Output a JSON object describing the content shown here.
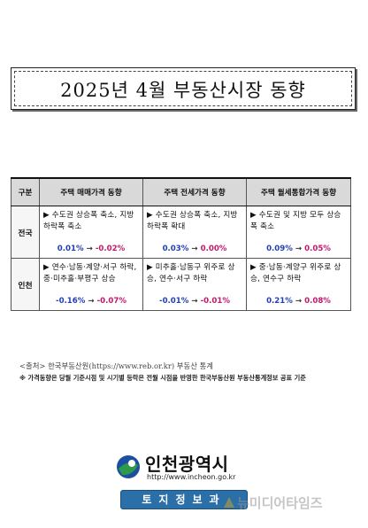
{
  "title": "2025년 4월 부동산시장 동향",
  "table": {
    "headers": [
      "구분",
      "주택 매매가격 동향",
      "주택 전세가격 동향",
      "주택 월세통합가격 동향"
    ],
    "rows": [
      {
        "region": "전국",
        "cells": [
          {
            "desc": "▶ 수도권 상승폭 축소, 지방 하락폭 축소",
            "from": "0.01%",
            "arrow": "→",
            "to": "-0.02%"
          },
          {
            "desc": "▶ 수도권 상승폭 축소, 지방 하락폭 확대",
            "from": "0.03%",
            "arrow": "→",
            "to": "0.00%"
          },
          {
            "desc": "▶ 수도권 및 지방 모두 상승폭 축소",
            "from": "0.09%",
            "arrow": "→",
            "to": "0.05%"
          }
        ]
      },
      {
        "region": "인천",
        "cells": [
          {
            "desc": "▶ 연수·남동·계양·서구 하락, 중·미추홀·부평구 상승",
            "from": "-0.16%",
            "arrow": "→",
            "to": "-0.07%"
          },
          {
            "desc": "▶ 미추홀·남동구 위주로 상승, 연수·서구 하락",
            "from": "-0.01%",
            "arrow": "→",
            "to": "-0.01%"
          },
          {
            "desc": "▶ 중·남동·계양구 위주로 상승, 연수구 하락",
            "from": "0.21%",
            "arrow": "→",
            "to": "0.08%"
          }
        ]
      }
    ]
  },
  "source": "<출처> 한국부동산원(https://www.reb.or.kr) 부동산 통계",
  "note": "※ 가격동향은 당월 기준시점 및 시기별 등락은 전월 시점을 반영한 한국부동산원 부동산통계정보 공표 기준",
  "footer": {
    "logo_title": "인천광역시",
    "logo_url": "http://www.incheon.go.kr",
    "info_bar": "토지정보과",
    "watermark": "뉴미디어타임즈",
    "emblem_icon": "incheon-emblem-icon",
    "colors": {
      "emblem_blue": "#1d4fa0",
      "emblem_green": "#2c9a4a",
      "bar": "#2a6fa8"
    }
  }
}
